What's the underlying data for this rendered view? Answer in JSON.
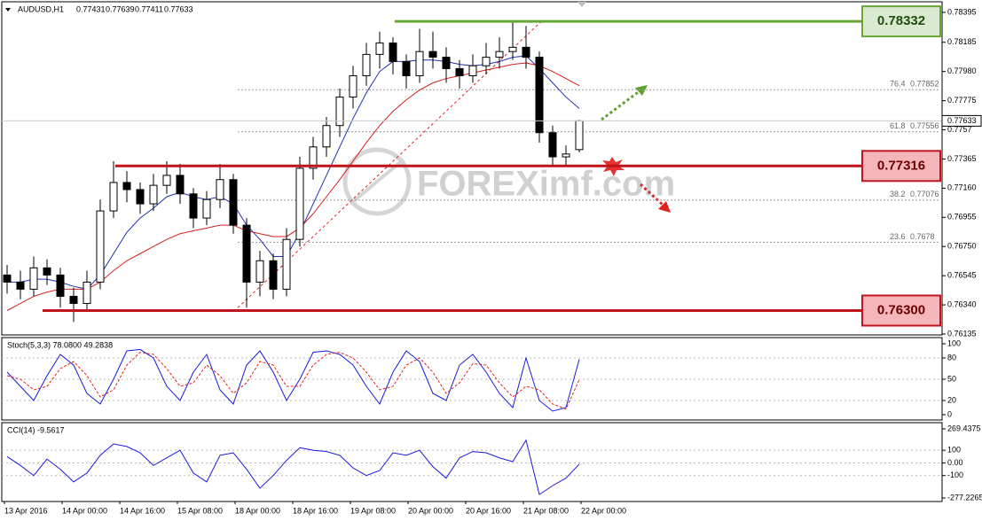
{
  "chart_data": [
    {
      "type": "candlestick",
      "title": "AUDUSD,H1",
      "open": [
        0.7655,
        0.765,
        0.7645,
        0.766,
        0.7655,
        0.764,
        0.7635,
        0.765,
        0.77,
        0.772,
        0.7715,
        0.7705,
        0.7718,
        0.7725,
        0.7712,
        0.7695,
        0.7708,
        0.7722,
        0.769,
        0.765,
        0.7665,
        0.7645,
        0.768,
        0.773,
        0.7745,
        0.776,
        0.778,
        0.7795,
        0.781,
        0.7818,
        0.7805,
        0.7795,
        0.7812,
        0.7808,
        0.78,
        0.7795,
        0.7802,
        0.7808,
        0.7812,
        0.7815,
        0.7808,
        0.7755,
        0.7738,
        0.77431
      ],
      "high": [
        0.7662,
        0.7658,
        0.7668,
        0.7666,
        0.766,
        0.7646,
        0.7658,
        0.7708,
        0.7735,
        0.7728,
        0.772,
        0.7726,
        0.7735,
        0.7733,
        0.7716,
        0.7714,
        0.7733,
        0.7726,
        0.7695,
        0.7672,
        0.767,
        0.7688,
        0.7738,
        0.7752,
        0.7766,
        0.7786,
        0.7802,
        0.7818,
        0.7826,
        0.7822,
        0.781,
        0.7828,
        0.7826,
        0.7815,
        0.7806,
        0.781,
        0.7818,
        0.7822,
        0.7833,
        0.783,
        0.7812,
        0.776,
        0.7746,
        0.77639
      ],
      "low": [
        0.7642,
        0.7638,
        0.764,
        0.7648,
        0.7632,
        0.7622,
        0.763,
        0.7645,
        0.7695,
        0.7706,
        0.7698,
        0.77,
        0.7712,
        0.7705,
        0.7688,
        0.769,
        0.7702,
        0.7684,
        0.7632,
        0.764,
        0.7638,
        0.764,
        0.7675,
        0.7722,
        0.7738,
        0.7752,
        0.7772,
        0.7788,
        0.78,
        0.7796,
        0.7786,
        0.779,
        0.78,
        0.779,
        0.7786,
        0.779,
        0.7796,
        0.78,
        0.7806,
        0.78,
        0.7748,
        0.7732,
        0.7732,
        0.77411
      ],
      "close": [
        0.765,
        0.7645,
        0.766,
        0.7655,
        0.764,
        0.7635,
        0.765,
        0.77,
        0.772,
        0.7715,
        0.7705,
        0.7718,
        0.7725,
        0.7712,
        0.7695,
        0.7708,
        0.7722,
        0.769,
        0.765,
        0.7665,
        0.7645,
        0.768,
        0.773,
        0.7745,
        0.776,
        0.778,
        0.7795,
        0.781,
        0.7818,
        0.7805,
        0.7795,
        0.7812,
        0.7808,
        0.78,
        0.7795,
        0.7802,
        0.7808,
        0.7812,
        0.7815,
        0.7808,
        0.7755,
        0.7738,
        0.774,
        0.77633
      ],
      "lines": [
        {
          "color": "#2030b0",
          "values": [
            0.765,
            0.765,
            0.7652,
            0.7652,
            0.765,
            0.7647,
            0.7645,
            0.7655,
            0.767,
            0.7685,
            0.7695,
            0.7702,
            0.771,
            0.7713,
            0.771,
            0.7708,
            0.771,
            0.7705,
            0.769,
            0.768,
            0.7668,
            0.7668,
            0.7685,
            0.7705,
            0.7725,
            0.7745,
            0.7765,
            0.7783,
            0.7798,
            0.7805,
            0.7805,
            0.7806,
            0.7806,
            0.7805,
            0.7803,
            0.7802,
            0.7803,
            0.7805,
            0.7808,
            0.7809,
            0.78,
            0.779,
            0.778,
            0.7772
          ]
        },
        {
          "color": "#d42020",
          "values": [
            0.763,
            0.7635,
            0.764,
            0.7643,
            0.7645,
            0.7645,
            0.7645,
            0.765,
            0.7658,
            0.7665,
            0.767,
            0.7675,
            0.768,
            0.7684,
            0.7686,
            0.7688,
            0.769,
            0.769,
            0.7686,
            0.7684,
            0.7682,
            0.7682,
            0.7688,
            0.7698,
            0.771,
            0.7722,
            0.7735,
            0.7748,
            0.776,
            0.777,
            0.7778,
            0.7785,
            0.779,
            0.7793,
            0.7795,
            0.7797,
            0.7799,
            0.7801,
            0.7803,
            0.7804,
            0.7802,
            0.7798,
            0.7793,
            0.7788
          ]
        }
      ],
      "ylim": [
        0.76135,
        0.78395
      ],
      "yticks": [
        0.78395,
        0.78185,
        {
          "value": 0.7798,
          "label": "0.77980"
        },
        0.77775,
        0.7757,
        0.77365,
        {
          "value": 0.7716,
          "label": "0.77160"
        },
        0.76955,
        {
          "value": 0.7675,
          "label": "0.76750"
        },
        0.76545,
        {
          "value": 0.7634,
          "label": "0.76340"
        },
        0.76135
      ],
      "levels": [
        {
          "value": 0.78332,
          "color": "#6aa636",
          "box": "#d9ead0"
        },
        {
          "value": 0.77316,
          "color": "#c0141c",
          "box": "#f4b6b8"
        },
        {
          "value": 0.763,
          "label": "0.76300",
          "color": "#c0141c",
          "box": "#f4b6b8"
        }
      ],
      "fib_levels": [
        {
          "ratio": 76.4,
          "value": 0.77852
        },
        {
          "ratio": 61.8,
          "value": 0.77556
        },
        {
          "ratio": 38.2,
          "value": 0.77076
        },
        {
          "ratio": 23.6,
          "value": 0.7678
        }
      ],
      "x_labels": [
        "13 Apr 2016",
        "14 Apr 00:00",
        "14 Apr 16:00",
        "15 Apr 08:00",
        "18 Apr 00:00",
        "18 Apr 16:00",
        "19 Apr 08:00",
        "20 Apr 00:00",
        "20 Apr 16:00",
        "21 Apr 08:00",
        "22 Apr 00:00"
      ],
      "watermark": "FOREXimf.com"
    },
    {
      "type": "line",
      "title": "Stoch(5,3,3) 78.0800 49.2838",
      "ylim": [
        0,
        100
      ],
      "yticks": [
        0,
        20,
        50,
        80,
        100
      ],
      "series": [
        {
          "color": "#1a1adb",
          "dash": false,
          "values": [
            60,
            40,
            20,
            55,
            85,
            70,
            30,
            15,
            50,
            90,
            92,
            80,
            40,
            20,
            60,
            85,
            35,
            15,
            70,
            90,
            60,
            20,
            50,
            88,
            90,
            85,
            70,
            40,
            15,
            60,
            90,
            75,
            30,
            20,
            70,
            85,
            60,
            30,
            10,
            80,
            20,
            5,
            10,
            78.08
          ]
        },
        {
          "color": "#e02020",
          "dash": true,
          "values": [
            55,
            50,
            35,
            40,
            65,
            75,
            55,
            25,
            35,
            70,
            88,
            85,
            65,
            40,
            45,
            70,
            55,
            30,
            45,
            75,
            70,
            40,
            40,
            70,
            85,
            88,
            80,
            60,
            35,
            40,
            70,
            80,
            60,
            30,
            45,
            72,
            70,
            45,
            25,
            40,
            35,
            15,
            8,
            49.2838
          ]
        }
      ]
    },
    {
      "type": "line",
      "title": "CCI(14) -9.5617",
      "ylim": [
        -277.2265,
        269.4375
      ],
      "yticks": [
        -277.2265,
        -100,
        {
          "value": 0,
          "label": "0.00"
        },
        100,
        269.4375
      ],
      "series": [
        {
          "color": "#1a1adb",
          "dash": false,
          "values": [
            50,
            -20,
            -100,
            30,
            -50,
            -150,
            -80,
            60,
            150,
            130,
            80,
            -20,
            40,
            100,
            -80,
            -150,
            60,
            80,
            -50,
            -200,
            -100,
            20,
            120,
            100,
            90,
            60,
            -40,
            -100,
            -60,
            80,
            60,
            100,
            -30,
            -120,
            40,
            90,
            80,
            40,
            10,
            180,
            -250,
            -180,
            -120,
            -9.5617
          ]
        }
      ]
    }
  ]
}
